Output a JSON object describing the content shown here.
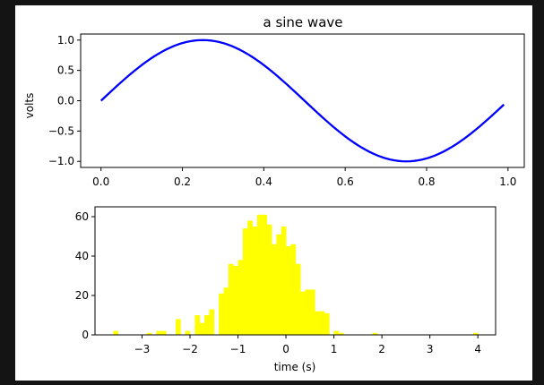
{
  "figure": {
    "background": "#ffffff",
    "frame_color": "#141414"
  },
  "chart_data": [
    {
      "type": "line",
      "title": "a sine wave",
      "xlabel": "",
      "ylabel": "volts",
      "xlim": [
        -0.05,
        1.04
      ],
      "ylim": [
        -1.1,
        1.1
      ],
      "xticks": [
        0.0,
        0.2,
        0.4,
        0.6,
        0.8,
        1.0
      ],
      "xtick_labels": [
        "0.0",
        "0.2",
        "0.4",
        "0.6",
        "0.8",
        "1.0"
      ],
      "yticks": [
        -1.0,
        -0.5,
        0.0,
        0.5,
        1.0
      ],
      "ytick_labels": [
        "−1.0",
        "−0.5",
        "0.0",
        "0.5",
        "1.0"
      ],
      "grid": false,
      "series": [
        {
          "color": "#0000ff",
          "function": "sin(2*pi*t)",
          "t_start": 0.0,
          "t_end": 0.99,
          "t_step": 0.01
        }
      ]
    },
    {
      "type": "bar",
      "subtype": "histogram",
      "title": "",
      "xlabel": "time (s)",
      "ylabel": "",
      "xlim": [
        -3.98,
        4.37
      ],
      "ylim": [
        0,
        65
      ],
      "xticks": [
        -3,
        -2,
        -1,
        0,
        1,
        2,
        3,
        4
      ],
      "xtick_labels": [
        "−3",
        "−2",
        "−1",
        "0",
        "1",
        "2",
        "3",
        "4"
      ],
      "yticks": [
        0,
        20,
        40,
        60
      ],
      "ytick_labels": [
        "0",
        "20",
        "40",
        "60"
      ],
      "grid": false,
      "color": "#ffff00",
      "bin_start": -3.6,
      "bin_width": 0.1,
      "counts": [
        2,
        0,
        0,
        0,
        0,
        0,
        0,
        1,
        0,
        2,
        2,
        0,
        0,
        8,
        0,
        2,
        0,
        10,
        6,
        10,
        13,
        0,
        21,
        24,
        36,
        35,
        38,
        54,
        58,
        55,
        61,
        61,
        56,
        46,
        51,
        55,
        45,
        46,
        36,
        22,
        23,
        23,
        12,
        12,
        11,
        0,
        2,
        1,
        0,
        0,
        0,
        0,
        0,
        0,
        1,
        0,
        0,
        0,
        0,
        0,
        0,
        0,
        0,
        0,
        0,
        0,
        0,
        0,
        0,
        0,
        0,
        0,
        0,
        0,
        0,
        1
      ]
    }
  ]
}
